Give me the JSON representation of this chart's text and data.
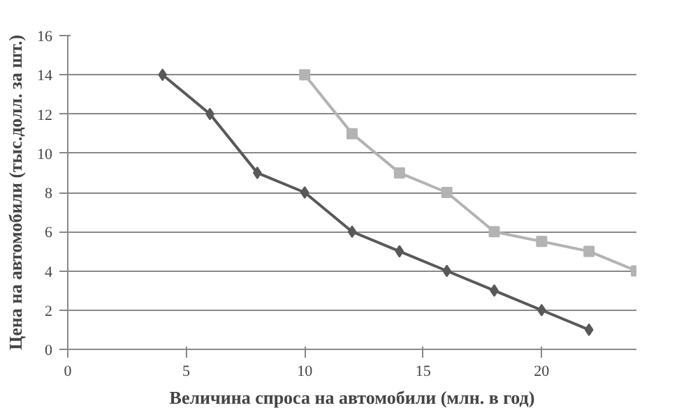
{
  "chart_data": {
    "type": "line",
    "xlabel": "Величина спроса на автомобили (млн. в год)",
    "ylabel": "Цена на автомобили (тыс.долл. за шт.)",
    "xlim": [
      0,
      24
    ],
    "xticks": [
      0,
      5,
      10,
      15,
      20
    ],
    "ylim": [
      0,
      16
    ],
    "yticks": [
      0,
      2,
      4,
      6,
      8,
      10,
      12,
      14,
      16
    ],
    "grid": "y",
    "series": [
      {
        "color": "#595959",
        "marker": "diamond",
        "x": [
          4,
          6,
          8,
          10,
          12,
          14,
          16,
          18,
          20,
          22
        ],
        "values": [
          14,
          12,
          9,
          8,
          6,
          5,
          4,
          3,
          2,
          1
        ]
      },
      {
        "color": "#b3b3b3",
        "marker": "square",
        "x": [
          10,
          12,
          14,
          16,
          18,
          20,
          22,
          24
        ],
        "values": [
          14,
          11,
          9,
          8,
          6,
          5.5,
          5,
          4
        ]
      }
    ]
  }
}
